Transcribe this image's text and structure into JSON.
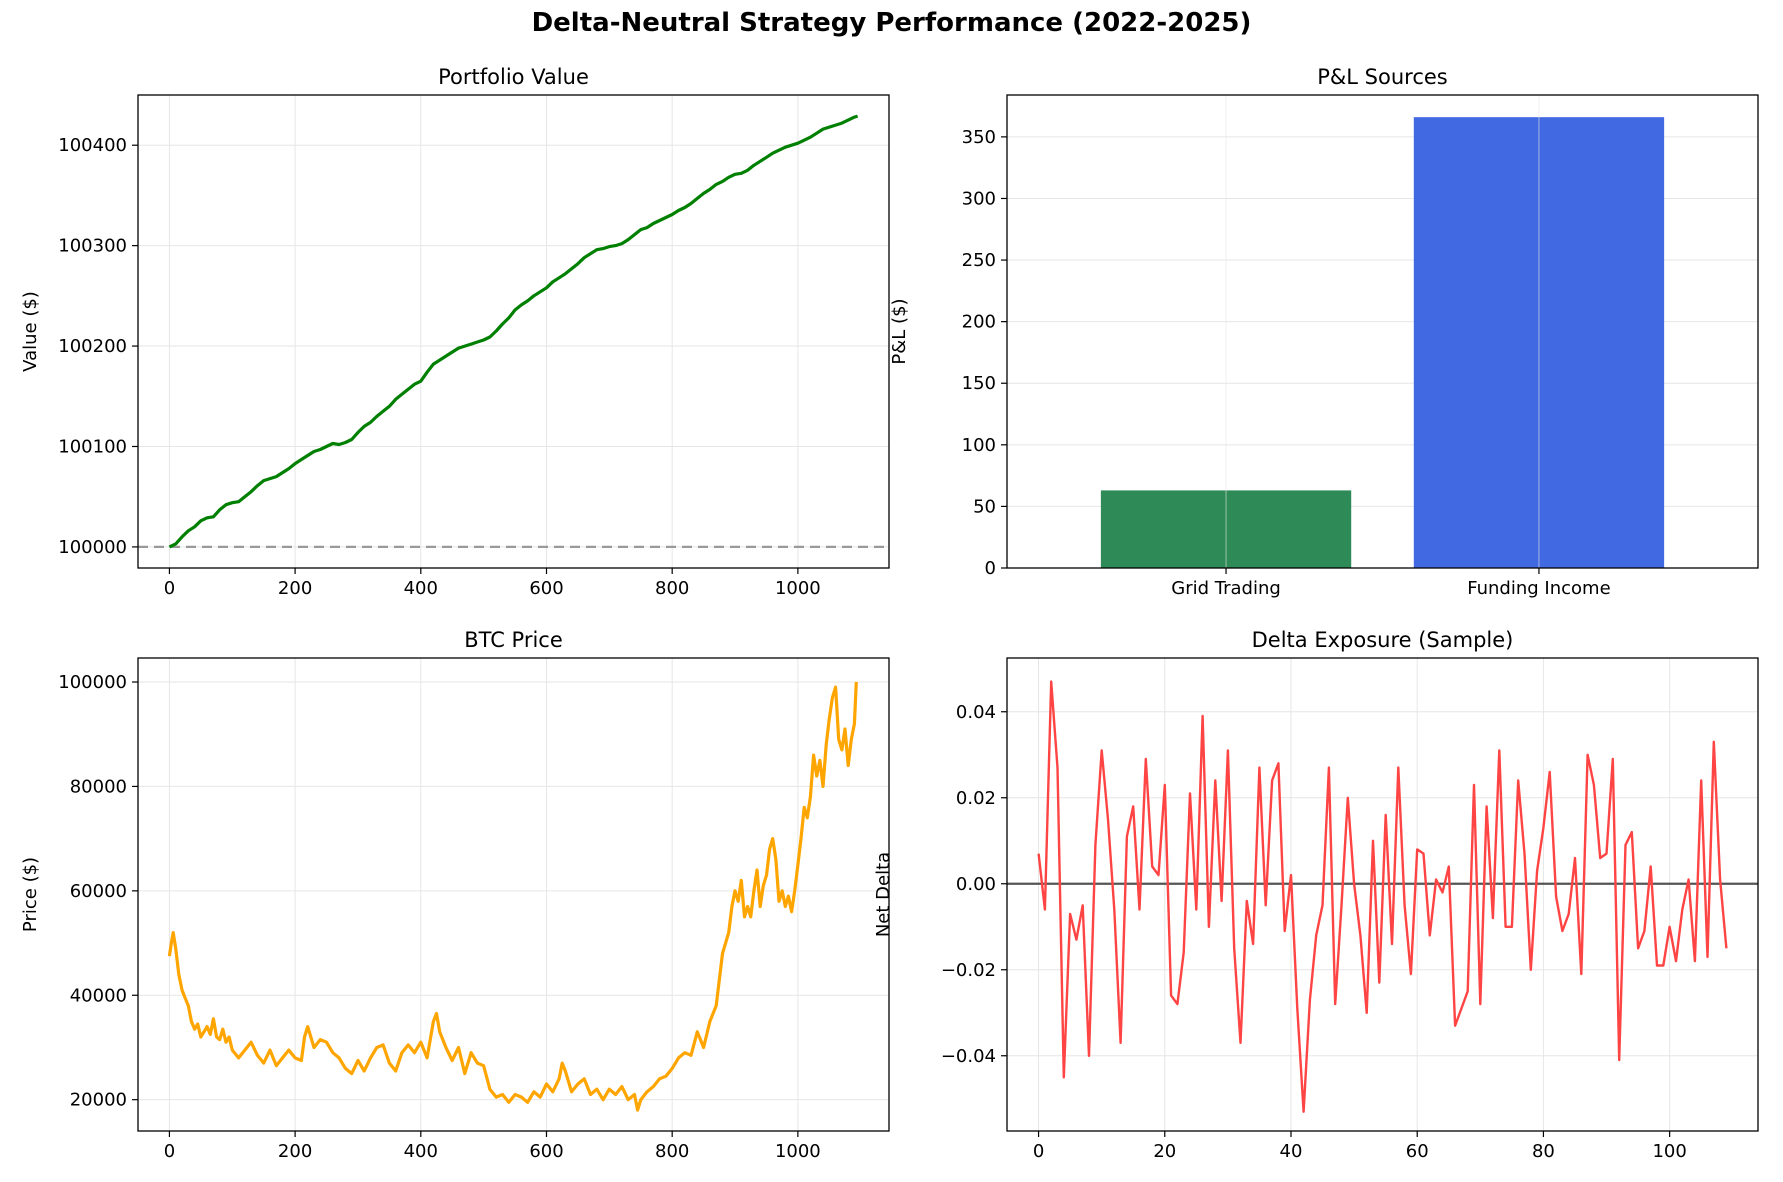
{
  "suptitle": "Delta-Neutral Strategy Performance (2022-2025)",
  "colors": {
    "portfolio_line": "#008000",
    "baseline": "#999999",
    "grid_trading_bar": "#2e8b57",
    "funding_income_bar": "#4169e1",
    "btc_line": "#ffa500",
    "delta_line": "#ff4444",
    "zero_line": "#555555",
    "grid": "#e6e6e6"
  },
  "chart_data": [
    {
      "type": "line",
      "title": "Portfolio Value",
      "xlabel": "",
      "ylabel": "Value ($)",
      "xlim": [
        -50,
        1145
      ],
      "ylim": [
        99979,
        100450
      ],
      "xticks": [
        0,
        200,
        400,
        600,
        800,
        1000
      ],
      "yticks": [
        100000,
        100100,
        100200,
        100300,
        100400
      ],
      "grid": true,
      "reference_line": {
        "y": 100000,
        "style": "dashed"
      },
      "series": [
        {
          "x": [
            0,
            10,
            20,
            30,
            40,
            50,
            60,
            70,
            80,
            90,
            100,
            110,
            120,
            130,
            140,
            150,
            160,
            170,
            180,
            190,
            200,
            210,
            220,
            230,
            240,
            250,
            260,
            270,
            280,
            290,
            300,
            310,
            320,
            330,
            340,
            350,
            360,
            370,
            380,
            390,
            400,
            410,
            420,
            430,
            440,
            450,
            460,
            470,
            480,
            490,
            500,
            510,
            520,
            530,
            540,
            550,
            560,
            570,
            580,
            590,
            600,
            610,
            620,
            630,
            640,
            650,
            660,
            670,
            680,
            690,
            700,
            710,
            720,
            730,
            740,
            750,
            760,
            770,
            780,
            790,
            800,
            810,
            820,
            830,
            840,
            850,
            860,
            870,
            880,
            890,
            900,
            910,
            920,
            930,
            940,
            950,
            960,
            970,
            980,
            990,
            1000,
            1010,
            1020,
            1030,
            1040,
            1050,
            1060,
            1070,
            1080,
            1090,
            1095
          ],
          "values": [
            100000,
            100003,
            100010,
            100016,
            100020,
            100026,
            100029,
            100030,
            100037,
            100042,
            100044,
            100045,
            100050,
            100055,
            100061,
            100066,
            100068,
            100070,
            100074,
            100078,
            100083,
            100087,
            100091,
            100095,
            100097,
            100100,
            100103,
            100102,
            100104,
            100107,
            100114,
            100120,
            100124,
            100130,
            100135,
            100140,
            100147,
            100152,
            100157,
            100162,
            100165,
            100174,
            100182,
            100186,
            100190,
            100194,
            100198,
            100200,
            100202,
            100204,
            100206,
            100209,
            100215,
            100222,
            100228,
            100236,
            100241,
            100245,
            100250,
            100254,
            100258,
            100264,
            100268,
            100272,
            100277,
            100282,
            100288,
            100292,
            100296,
            100297,
            100299,
            100300,
            100302,
            100306,
            100311,
            100316,
            100318,
            100322,
            100325,
            100328,
            100331,
            100335,
            100338,
            100342,
            100347,
            100352,
            100356,
            100361,
            100364,
            100368,
            100371,
            100372,
            100375,
            100380,
            100384,
            100388,
            100392,
            100395,
            100398,
            100400,
            100402,
            100405,
            100408,
            100412,
            100416,
            100418,
            100420,
            100422,
            100425,
            100428,
            100429
          ]
        }
      ]
    },
    {
      "type": "bar",
      "title": "P&L Sources",
      "xlabel": "",
      "ylabel": "P&L ($)",
      "categories": [
        "Grid Trading",
        "Funding Income"
      ],
      "values": [
        63,
        366
      ],
      "ylim": [
        0,
        384
      ],
      "yticks": [
        0,
        50,
        100,
        150,
        200,
        250,
        300,
        350
      ],
      "grid": true
    },
    {
      "type": "line",
      "title": "BTC Price",
      "xlabel": "",
      "ylabel": "Price ($)",
      "xlim": [
        -50,
        1145
      ],
      "ylim": [
        14000,
        104600
      ],
      "xticks": [
        0,
        200,
        400,
        600,
        800,
        1000
      ],
      "yticks": [
        20000,
        40000,
        60000,
        80000,
        100000
      ],
      "grid": true,
      "series": [
        {
          "x": [
            0,
            3,
            6,
            10,
            15,
            20,
            25,
            30,
            35,
            40,
            45,
            50,
            55,
            60,
            65,
            70,
            75,
            80,
            85,
            90,
            95,
            100,
            110,
            120,
            130,
            140,
            150,
            160,
            170,
            180,
            190,
            200,
            210,
            215,
            220,
            230,
            240,
            250,
            260,
            270,
            280,
            290,
            300,
            310,
            320,
            330,
            340,
            350,
            360,
            370,
            380,
            390,
            400,
            410,
            420,
            425,
            430,
            440,
            450,
            460,
            470,
            480,
            490,
            500,
            510,
            520,
            530,
            540,
            550,
            560,
            570,
            580,
            590,
            600,
            610,
            620,
            625,
            630,
            640,
            650,
            660,
            670,
            680,
            690,
            700,
            710,
            720,
            730,
            740,
            745,
            750,
            760,
            770,
            780,
            790,
            800,
            810,
            820,
            830,
            840,
            850,
            860,
            870,
            880,
            885,
            890,
            895,
            900,
            905,
            910,
            915,
            920,
            925,
            930,
            935,
            940,
            945,
            950,
            955,
            960,
            965,
            970,
            975,
            980,
            985,
            990,
            995,
            1000,
            1005,
            1010,
            1015,
            1020,
            1025,
            1030,
            1035,
            1040,
            1045,
            1050,
            1055,
            1060,
            1065,
            1070,
            1075,
            1080,
            1085,
            1090,
            1093
          ],
          "values": [
            47500,
            50000,
            52000,
            49000,
            44000,
            41000,
            39500,
            38000,
            35000,
            33500,
            34500,
            32000,
            33000,
            34000,
            32500,
            35500,
            32000,
            31500,
            33500,
            31000,
            32000,
            29500,
            28000,
            29500,
            31000,
            28500,
            27000,
            29500,
            26500,
            28000,
            29500,
            28000,
            27500,
            32000,
            34000,
            30000,
            31500,
            31000,
            29000,
            28000,
            26000,
            25000,
            27500,
            25500,
            28000,
            30000,
            30500,
            27000,
            25500,
            29000,
            30500,
            29000,
            31000,
            28000,
            35000,
            36500,
            33000,
            30000,
            27500,
            30000,
            25000,
            29000,
            27000,
            26500,
            22000,
            20500,
            21000,
            19500,
            21000,
            20500,
            19500,
            21500,
            20500,
            23000,
            21500,
            24000,
            27000,
            25500,
            21500,
            23000,
            24000,
            21000,
            22000,
            20000,
            22000,
            21000,
            22500,
            20000,
            21000,
            18000,
            20000,
            21500,
            22500,
            24000,
            24500,
            26000,
            28000,
            29000,
            28500,
            33000,
            30000,
            35000,
            38000,
            48000,
            50000,
            52000,
            57000,
            60000,
            58000,
            62000,
            55000,
            57000,
            55000,
            60000,
            64000,
            57000,
            61000,
            63000,
            68000,
            70000,
            66000,
            58000,
            60000,
            57000,
            59000,
            56000,
            60000,
            65000,
            70000,
            76000,
            74000,
            78000,
            86000,
            82000,
            85000,
            80000,
            88000,
            93000,
            97000,
            99000,
            89000,
            87000,
            91000,
            84000,
            89000,
            92000,
            100000
          ]
        }
      ]
    },
    {
      "type": "line",
      "title": "Delta Exposure (Sample)",
      "xlabel": "",
      "ylabel": "Net Delta",
      "xlim": [
        -5,
        114
      ],
      "ylim": [
        -0.0575,
        0.0525
      ],
      "xticks": [
        0,
        20,
        40,
        60,
        80,
        100
      ],
      "yticks": [
        -0.04,
        -0.02,
        0.0,
        0.02,
        0.04
      ],
      "ytick_labels": [
        "−0.04",
        "−0.02",
        "0.00",
        "0.02",
        "0.04"
      ],
      "grid": true,
      "reference_line": {
        "y": 0,
        "style": "solid"
      },
      "series": [
        {
          "x": [
            0,
            1,
            2,
            3,
            4,
            5,
            6,
            7,
            8,
            9,
            10,
            11,
            12,
            13,
            14,
            15,
            16,
            17,
            18,
            19,
            20,
            21,
            22,
            23,
            24,
            25,
            26,
            27,
            28,
            29,
            30,
            31,
            32,
            33,
            34,
            35,
            36,
            37,
            38,
            39,
            40,
            41,
            42,
            43,
            44,
            45,
            46,
            47,
            48,
            49,
            50,
            51,
            52,
            53,
            54,
            55,
            56,
            57,
            58,
            59,
            60,
            61,
            62,
            63,
            64,
            65,
            66,
            67,
            68,
            69,
            70,
            71,
            72,
            73,
            74,
            75,
            76,
            77,
            78,
            79,
            80,
            81,
            82,
            83,
            84,
            85,
            86,
            87,
            88,
            89,
            90,
            91,
            92,
            93,
            94,
            95,
            96,
            97,
            98,
            99,
            100,
            101,
            102,
            103,
            104,
            105,
            106,
            107,
            108,
            109
          ],
          "values": [
            0.007,
            -0.006,
            0.047,
            0.027,
            -0.045,
            -0.007,
            -0.013,
            -0.005,
            -0.04,
            0.009,
            0.031,
            0.015,
            -0.006,
            -0.037,
            0.011,
            0.018,
            -0.006,
            0.029,
            0.004,
            0.002,
            0.023,
            -0.026,
            -0.028,
            -0.016,
            0.021,
            -0.006,
            0.039,
            -0.01,
            0.024,
            -0.004,
            0.031,
            -0.015,
            -0.037,
            -0.004,
            -0.014,
            0.027,
            -0.005,
            0.024,
            0.028,
            -0.011,
            0.002,
            -0.029,
            -0.053,
            -0.027,
            -0.012,
            -0.005,
            0.027,
            -0.028,
            -0.005,
            0.02,
            0.0,
            -0.012,
            -0.03,
            0.01,
            -0.023,
            0.016,
            -0.014,
            0.027,
            -0.005,
            -0.021,
            0.008,
            0.007,
            -0.012,
            0.001,
            -0.002,
            0.004,
            -0.033,
            -0.029,
            -0.025,
            0.023,
            -0.028,
            0.018,
            -0.008,
            0.031,
            -0.01,
            -0.01,
            0.024,
            0.007,
            -0.02,
            0.003,
            0.013,
            0.026,
            -0.003,
            -0.011,
            -0.007,
            0.006,
            -0.021,
            0.03,
            0.023,
            0.006,
            0.007,
            0.029,
            -0.041,
            0.009,
            0.012,
            -0.015,
            -0.011,
            0.004,
            -0.019,
            -0.019,
            -0.01,
            -0.018,
            -0.006,
            0.001,
            -0.018,
            0.024,
            -0.017,
            0.033,
            0.001,
            -0.015
          ]
        }
      ]
    }
  ]
}
